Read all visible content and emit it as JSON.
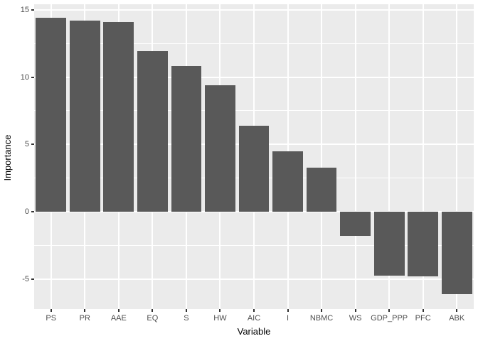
{
  "chart_data": {
    "type": "bar",
    "title": "",
    "xlabel": "Variable",
    "ylabel": "Importance",
    "categories": [
      "PS",
      "PR",
      "AAE",
      "EQ",
      "S",
      "HW",
      "AIC",
      "I",
      "NBMC",
      "WS",
      "GDP_PPP",
      "PFC",
      "ABK"
    ],
    "values": [
      14.4,
      14.2,
      14.1,
      11.9,
      10.8,
      9.4,
      6.4,
      4.5,
      3.3,
      -1.8,
      -4.7,
      -4.8,
      -6.1
    ],
    "ylim": [
      -7.2,
      15.4
    ],
    "yticks_major": [
      15,
      10,
      5,
      0,
      -5
    ],
    "yticks_minor": [
      12.5,
      7.5,
      2.5,
      -2.5
    ],
    "grid": true,
    "legend_position": "none",
    "bar_width_fraction": 0.9,
    "colors": {
      "bar": "#595959",
      "panel_bg": "#EBEBEB",
      "grid_major": "#FFFFFF",
      "grid_minor": "#FFFFFF",
      "tick_text": "#4D4D4D",
      "tick_mark": "#333333",
      "axis_title": "#000000",
      "outer_bg": "#FFFFFF"
    }
  }
}
